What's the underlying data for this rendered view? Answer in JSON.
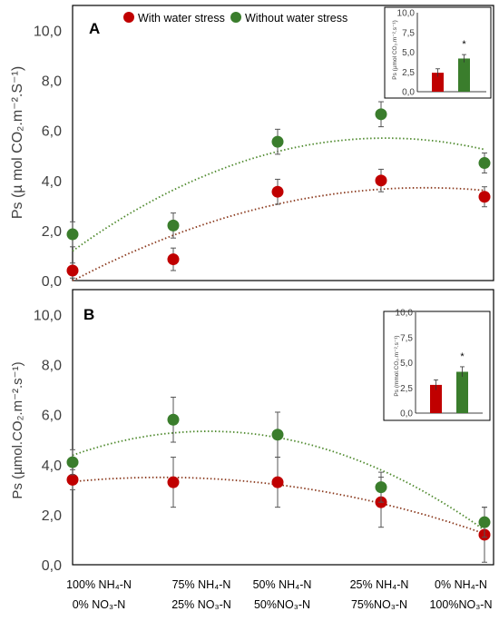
{
  "legend": {
    "with_stress": "With water stress",
    "without_stress": "Without water stress"
  },
  "colors": {
    "with_stress": "#c00000",
    "without_stress": "#3a7d2c",
    "with_stress_trend": "#8b3a1e",
    "without_stress_trend": "#4f8a2e"
  },
  "x_categories": [
    {
      "line1": "100% NH₄-N",
      "line2": "0% NO₃-N"
    },
    {
      "line1": "75% NH₄-N",
      "line2": "25% NO₃-N"
    },
    {
      "line1": "50% NH₄-N",
      "line2": "50%NO₃-N"
    },
    {
      "line1": "25% NH₄-N",
      "line2": "75%NO₃-N"
    },
    {
      "line1": "0% NH₄-N",
      "line2": "100%NO₃-N"
    }
  ],
  "chart_data": [
    {
      "type": "scatter",
      "panel": "A",
      "ylabel": "Ps (µ mol CO₂.m⁻².S⁻¹)",
      "ylim": [
        0,
        11
      ],
      "yticks": [
        "0,0",
        "2,0",
        "4,0",
        "6,0",
        "8,0",
        "10,0"
      ],
      "trendline": "quadratic",
      "series": [
        {
          "key": "with_stress",
          "values": [
            0.4,
            0.85,
            3.55,
            4.0,
            3.35
          ],
          "errors": [
            0.3,
            0.45,
            0.5,
            0.45,
            0.4
          ]
        },
        {
          "key": "without_stress",
          "values": [
            1.85,
            2.2,
            5.55,
            6.65,
            4.7
          ],
          "errors": [
            0.5,
            0.5,
            0.5,
            0.5,
            0.4
          ]
        }
      ],
      "inset": {
        "type": "bar",
        "ylabel": "Ps (µmol CO₂.m⁻².s⁻¹)",
        "ylim": [
          0,
          10
        ],
        "yticks": [
          "0,0",
          "2,5",
          "5,0",
          "7,5",
          "10,0"
        ],
        "values": [
          2.4,
          4.2
        ],
        "errors": [
          0.5,
          0.5
        ],
        "annotation": "*"
      }
    },
    {
      "type": "scatter",
      "panel": "B",
      "ylabel": "Ps (µmol.CO₂.m⁻².s⁻¹)",
      "ylim": [
        0,
        11
      ],
      "yticks": [
        "0,0",
        "2,0",
        "4,0",
        "6,0",
        "8,0",
        "10,0"
      ],
      "trendline": "quadratic",
      "series": [
        {
          "key": "with_stress",
          "values": [
            3.4,
            3.3,
            3.3,
            2.5,
            1.2
          ],
          "errors": [
            0.4,
            1.0,
            1.0,
            1.0,
            1.1
          ]
        },
        {
          "key": "without_stress",
          "values": [
            4.1,
            5.8,
            5.2,
            3.1,
            1.7
          ],
          "errors": [
            0.5,
            0.9,
            0.9,
            0.6,
            0.6
          ]
        }
      ],
      "inset": {
        "type": "bar",
        "ylabel": "Ps (mmol.CO₂.m⁻².s⁻¹)",
        "ylim": [
          0,
          10
        ],
        "yticks": [
          "0,0",
          "2,5",
          "5,0",
          "7,5",
          "10,0"
        ],
        "values": [
          2.8,
          4.1
        ],
        "errors": [
          0.5,
          0.5
        ],
        "annotation": "*"
      }
    }
  ]
}
